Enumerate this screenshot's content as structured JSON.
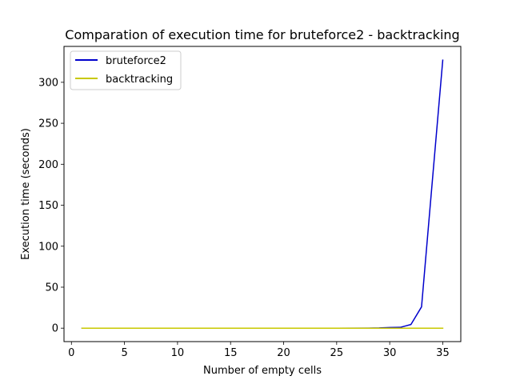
{
  "chart_data": {
    "type": "line",
    "title": "Comparation of execution time for bruteforce2 - backtracking",
    "xlabel": "Number of empty cells",
    "ylabel": "Execution time (seconds)",
    "xlim": [
      -0.7,
      36.7
    ],
    "ylim": [
      -16.4,
      343.8
    ],
    "xticks": [
      0,
      5,
      10,
      15,
      20,
      25,
      30,
      35
    ],
    "yticks": [
      0,
      50,
      100,
      150,
      200,
      250,
      300
    ],
    "legend_position": "upper left",
    "grid": false,
    "series": [
      {
        "name": "bruteforce2",
        "color": "#0000cc",
        "x": [
          1,
          5,
          10,
          15,
          20,
          25,
          28,
          29,
          30,
          31,
          32,
          33,
          34,
          35
        ],
        "y": [
          0,
          0,
          0,
          0,
          0,
          0,
          0.1,
          0.3,
          0.8,
          1.0,
          4.5,
          26,
          177,
          327
        ]
      },
      {
        "name": "backtracking",
        "color": "#c8c800",
        "x": [
          1,
          5,
          10,
          15,
          20,
          25,
          30,
          35
        ],
        "y": [
          0,
          0,
          0,
          0,
          0,
          0,
          0,
          0
        ]
      }
    ]
  }
}
